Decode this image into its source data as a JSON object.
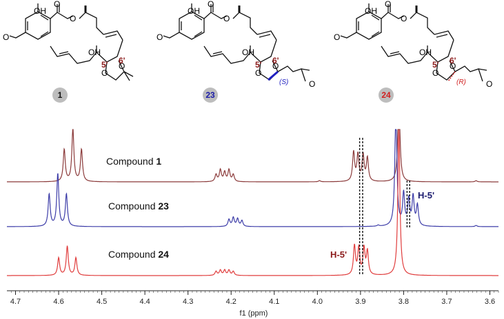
{
  "compounds": [
    {
      "id": "1",
      "badge_color": "#bdbdbd",
      "text_color": "#111111"
    },
    {
      "id": "23",
      "badge_color": "#bdbdbd",
      "text_color": "#1a1aa8"
    },
    {
      "id": "24",
      "badge_color": "#bdbdbd",
      "text_color": "#d02020"
    }
  ],
  "structure_labels": {
    "oh": "OH",
    "ho": "HO",
    "o": "O",
    "c5": "5'",
    "c6": "6'",
    "s_config": "(S)",
    "r_config": "(R)"
  },
  "chart_data": {
    "type": "line",
    "xlabel": "f1 (ppm)",
    "xlim": [
      4.72,
      3.58
    ],
    "x_reversed": true,
    "x_ticks": [
      "4.7",
      "4.6",
      "4.5",
      "4.4",
      "4.3",
      "4.2",
      "4.1",
      "4.0",
      "3.9",
      "3.8",
      "3.7",
      "3.6"
    ],
    "grid": false,
    "series": [
      {
        "name": "Compound 1",
        "label_prefix": "Compound ",
        "label_bold": "1",
        "color": "#8b3a3a",
        "peaks": [
          {
            "ppm": 4.587,
            "h": 0.55
          },
          {
            "ppm": 4.567,
            "h": 0.9
          },
          {
            "ppm": 4.547,
            "h": 0.55
          },
          {
            "ppm": 4.235,
            "h": 0.12
          },
          {
            "ppm": 4.225,
            "h": 0.2
          },
          {
            "ppm": 4.215,
            "h": 0.16
          },
          {
            "ppm": 4.205,
            "h": 0.2
          },
          {
            "ppm": 4.195,
            "h": 0.12
          },
          {
            "ppm": 3.995,
            "h": 0.02
          },
          {
            "ppm": 3.916,
            "h": 0.5
          },
          {
            "ppm": 3.906,
            "h": 0.45
          },
          {
            "ppm": 3.894,
            "h": 0.45
          },
          {
            "ppm": 3.884,
            "h": 0.4
          },
          {
            "ppm": 3.811,
            "h": 1.6
          },
          {
            "ppm": 3.632,
            "h": 0.02
          }
        ]
      },
      {
        "name": "Compound 23",
        "label_prefix": "Compound ",
        "label_bold": "23",
        "color": "#3c3ca8",
        "peaks": [
          {
            "ppm": 4.622,
            "h": 0.55
          },
          {
            "ppm": 4.602,
            "h": 0.9
          },
          {
            "ppm": 4.582,
            "h": 0.55
          },
          {
            "ppm": 4.205,
            "h": 0.12
          },
          {
            "ppm": 4.195,
            "h": 0.15
          },
          {
            "ppm": 4.185,
            "h": 0.13
          },
          {
            "ppm": 4.175,
            "h": 0.1
          },
          {
            "ppm": 3.859,
            "h": 0.02
          },
          {
            "ppm": 3.818,
            "h": 2.0
          },
          {
            "ppm": 3.8,
            "h": 0.55
          },
          {
            "ppm": 3.788,
            "h": 0.45
          },
          {
            "ppm": 3.778,
            "h": 0.5
          },
          {
            "ppm": 3.768,
            "h": 0.35
          },
          {
            "ppm": 3.632,
            "h": 0.02
          }
        ]
      },
      {
        "name": "Compound 24",
        "label_prefix": "Compound ",
        "label_bold": "24",
        "color": "#e03c3c",
        "peaks": [
          {
            "ppm": 4.6,
            "h": 0.3
          },
          {
            "ppm": 4.58,
            "h": 0.5
          },
          {
            "ppm": 4.56,
            "h": 0.3
          },
          {
            "ppm": 4.235,
            "h": 0.07
          },
          {
            "ppm": 4.225,
            "h": 0.09
          },
          {
            "ppm": 4.215,
            "h": 0.09
          },
          {
            "ppm": 4.205,
            "h": 0.09
          },
          {
            "ppm": 4.195,
            "h": 0.07
          },
          {
            "ppm": 3.914,
            "h": 0.5
          },
          {
            "ppm": 3.904,
            "h": 0.45
          },
          {
            "ppm": 3.892,
            "h": 0.45
          },
          {
            "ppm": 3.884,
            "h": 0.4
          },
          {
            "ppm": 3.811,
            "h": 2.5
          }
        ]
      }
    ],
    "annotations": [
      {
        "text": "H-5'",
        "color": "#8b1a1a",
        "ppm": 3.9
      },
      {
        "text": "H-5'",
        "color": "#1a1a6e",
        "ppm": 3.79
      }
    ]
  }
}
